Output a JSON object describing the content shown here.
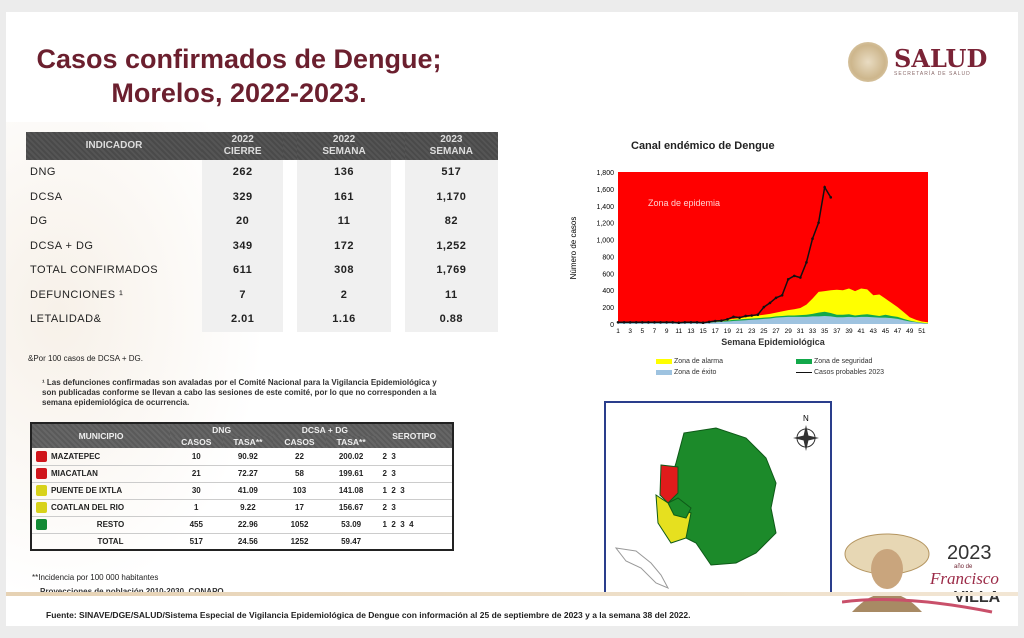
{
  "title_line1": "Casos confirmados de Dengue;",
  "title_line2": "Morelos, 2022-2023.",
  "logo": {
    "name": "SALUD",
    "subtitle": "SECRETARÍA DE SALUD"
  },
  "indicators": {
    "headers": {
      "indicador": "INDICADOR",
      "c1a": "2022",
      "c1b": "CIERRE",
      "c2a": "2022",
      "c2b": "SEMANA",
      "c3a": "2023",
      "c3b": "SEMANA"
    },
    "rows": [
      {
        "label": "DNG",
        "v": [
          "262",
          "136",
          "517"
        ]
      },
      {
        "label": "DCSA",
        "v": [
          "329",
          "161",
          "1,170"
        ]
      },
      {
        "label": "DG",
        "v": [
          "20",
          "11",
          "82"
        ]
      },
      {
        "label": "DCSA + DG",
        "v": [
          "349",
          "172",
          "1,252"
        ]
      },
      {
        "label": "TOTAL CONFIRMADOS",
        "v": [
          "611",
          "308",
          "1,769"
        ]
      },
      {
        "label": "DEFUNCIONES ¹",
        "v": [
          "7",
          "2",
          "11"
        ]
      },
      {
        "label": "LETALIDAD&",
        "v": [
          "2.01",
          "1.16",
          "0.88"
        ]
      }
    ]
  },
  "note_letalidad": "&Por 100 casos de DCSA + DG.",
  "note_defunciones": "¹ Las defunciones confirmadas son avaladas por el Comité Nacional para la Vigilancia Epidemiológica y son publicadas conforme se llevan a cabo las sesiones de este comité, por lo que no corresponden a la semana epidemiológica de ocurrencia.",
  "municipios": {
    "headers": {
      "municipio": "MUNICIPIO",
      "dng": "DNG",
      "dcsa": "DCSA + DG",
      "casos": "CASOS",
      "tasa": "TASA**",
      "serotipo": "SEROTIPO"
    },
    "rows": [
      {
        "color": "#d0151b",
        "name": "MAZATEPEC",
        "dng_casos": "10",
        "dng_tasa": "90.92",
        "dcsa_casos": "22",
        "dcsa_tasa": "200.02",
        "serotipo": "2  3"
      },
      {
        "color": "#d0151b",
        "name": "MIACATLAN",
        "dng_casos": "21",
        "dng_tasa": "72.27",
        "dcsa_casos": "58",
        "dcsa_tasa": "199.61",
        "serotipo": "2  3"
      },
      {
        "color": "#d8d21a",
        "name": "PUENTE DE IXTLA",
        "dng_casos": "30",
        "dng_tasa": "41.09",
        "dcsa_casos": "103",
        "dcsa_tasa": "141.08",
        "serotipo": "1  2  3"
      },
      {
        "color": "#d8d21a",
        "name": "COATLAN DEL RIO",
        "dng_casos": "1",
        "dng_tasa": "9.22",
        "dcsa_casos": "17",
        "dcsa_tasa": "156.67",
        "serotipo": "2  3"
      },
      {
        "color": "#138a35",
        "name": "RESTO",
        "dng_casos": "455",
        "dng_tasa": "22.96",
        "dcsa_casos": "1052",
        "dcsa_tasa": "53.09",
        "serotipo": "1  2  3  4"
      }
    ],
    "total": {
      "name": "TOTAL",
      "dng_casos": "517",
      "dng_tasa": "24.56",
      "dcsa_casos": "1252",
      "dcsa_tasa": "59.47"
    }
  },
  "note_incidencia": "**Incidencia por 100 000 habitantes",
  "note_proyecciones": "Proyecciones de población 2010-2030,  CONAPO.",
  "map": {
    "north": "N"
  },
  "villa": {
    "year": "2023",
    "line1": "año de",
    "name1": "Francisco",
    "name2": "VILLA"
  },
  "source": "Fuente: SINAVE/DGE/SALUD/Sistema Especial de Vigilancia Epidemiológica de Dengue con información al 25 de septiembre de 2023 y a la semana 38 del 2022.",
  "chart_data": {
    "type": "area",
    "title": "Canal endémico de Dengue",
    "xlabel": "Semana Epidemiológica",
    "ylabel": "Número de casos",
    "ylim": [
      0,
      1800
    ],
    "yticks": [
      "0",
      "200",
      "400",
      "600",
      "800",
      "1,000",
      "1,200",
      "1,400",
      "1,600",
      "1,800"
    ],
    "xticks": [
      "1",
      "3",
      "5",
      "7",
      "9",
      "11",
      "13",
      "15",
      "17",
      "19",
      "21",
      "23",
      "25",
      "27",
      "29",
      "31",
      "33",
      "35",
      "37",
      "39",
      "41",
      "43",
      "45",
      "47",
      "49",
      "51"
    ],
    "annotation": "Zona de epidemia",
    "colors": {
      "epidemia": "#ff0000",
      "alarma": "#ffff00",
      "seguridad": "#12a84a",
      "exito": "#9ec3e0",
      "line": "#111111"
    },
    "legend": [
      "Zona de alarma",
      "Zona de seguridad",
      "Zona de éxito",
      "Casos probables 2023"
    ],
    "exito": [
      10,
      10,
      10,
      10,
      10,
      10,
      10,
      10,
      10,
      10,
      10,
      10,
      10,
      10,
      10,
      15,
      20,
      25,
      30,
      35,
      40,
      45,
      50,
      55,
      60,
      65,
      75,
      80,
      85,
      85,
      85,
      85,
      90,
      90,
      95,
      90,
      80,
      80,
      85,
      80,
      85,
      85,
      80,
      75,
      75,
      70,
      60,
      45,
      30,
      20,
      10,
      5
    ],
    "seguridad": [
      15,
      15,
      15,
      15,
      15,
      15,
      15,
      15,
      15,
      15,
      15,
      15,
      15,
      15,
      15,
      20,
      25,
      30,
      40,
      50,
      55,
      60,
      65,
      70,
      75,
      80,
      90,
      95,
      100,
      100,
      105,
      110,
      120,
      135,
      145,
      130,
      110,
      110,
      115,
      100,
      110,
      115,
      105,
      95,
      110,
      95,
      85,
      60,
      40,
      25,
      15,
      8
    ],
    "alarma": [
      20,
      20,
      20,
      20,
      20,
      20,
      20,
      20,
      20,
      20,
      20,
      20,
      20,
      20,
      20,
      30,
      35,
      40,
      50,
      60,
      70,
      80,
      90,
      100,
      110,
      120,
      135,
      150,
      165,
      175,
      190,
      230,
      300,
      380,
      390,
      400,
      405,
      400,
      420,
      390,
      420,
      410,
      340,
      350,
      300,
      250,
      200,
      140,
      80,
      50,
      30,
      20
    ],
    "casos_2023": [
      20,
      20,
      20,
      20,
      20,
      20,
      20,
      20,
      20,
      20,
      15,
      20,
      20,
      20,
      15,
      25,
      35,
      40,
      55,
      85,
      75,
      95,
      100,
      110,
      200,
      250,
      310,
      340,
      530,
      570,
      550,
      730,
      1010,
      1200,
      1620,
      1500
    ]
  }
}
